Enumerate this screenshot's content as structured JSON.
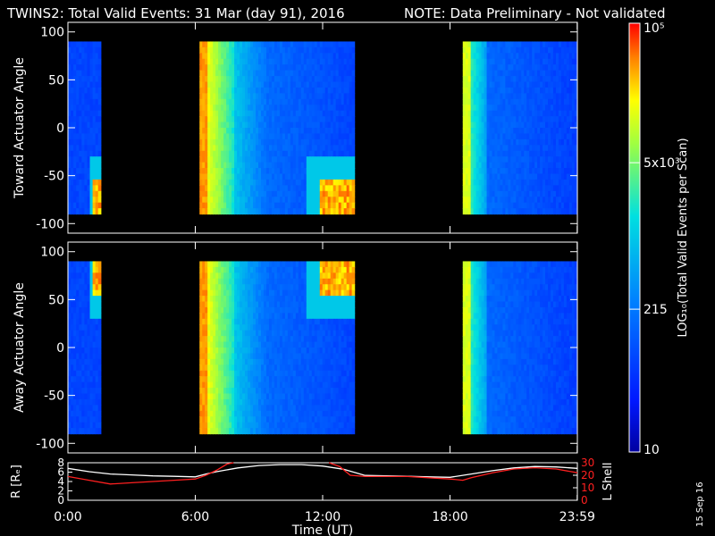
{
  "title": "TWINS2: Total Valid Events: 31 Mar (day  91), 2016",
  "note": "NOTE: Data Preliminary - Not validated",
  "stamp": "15 Sep 16",
  "colors": {
    "note": "#ff2020",
    "r_line": "#ffffff",
    "lshell_line": "#ff2020",
    "background": "#000000"
  },
  "chart_data": [
    {
      "type": "heatmap",
      "ylabel": "Toward Actuator Angle",
      "ylim": [
        -110,
        110
      ],
      "yticks": [
        "100",
        "50",
        "0",
        "-50",
        "-100"
      ],
      "ytick_values": [
        100,
        50,
        0,
        -50,
        -100
      ],
      "angle_range": [
        -90,
        90
      ],
      "xlim": [
        0,
        24
      ],
      "segments": [
        {
          "start_hr": 0.0,
          "end_hr": 1.55,
          "level": 0.22,
          "corner_hot": "bottom-right"
        },
        {
          "start_hr": 6.2,
          "end_hr": 13.5,
          "profile": "warm-start-cooling",
          "corner_hot": "bottom-right"
        },
        {
          "start_hr": 18.6,
          "end_hr": 23.99,
          "profile": "cyan-start-blue"
        }
      ]
    },
    {
      "type": "heatmap",
      "ylabel": "Away Actuator Angle",
      "ylim": [
        -110,
        110
      ],
      "yticks": [
        "100",
        "50",
        "0",
        "-50",
        "-100"
      ],
      "ytick_values": [
        100,
        50,
        0,
        -50,
        -100
      ],
      "angle_range": [
        -90,
        90
      ],
      "xlim": [
        0,
        24
      ],
      "segments": [
        {
          "start_hr": 0.0,
          "end_hr": 1.55,
          "level": 0.22,
          "corner_hot": "top-right"
        },
        {
          "start_hr": 6.2,
          "end_hr": 13.5,
          "profile": "warm-start-cooling",
          "corner_hot": "top-right"
        },
        {
          "start_hr": 18.6,
          "end_hr": 23.99,
          "profile": "cyan-start-blue"
        }
      ]
    },
    {
      "type": "line",
      "ylabel_left": "R [Rₑ]",
      "ylabel_right": "L Shell",
      "ylim_left": [
        0,
        8
      ],
      "ylim_right": [
        0,
        30
      ],
      "yticks_left": [
        "8",
        "6",
        "4",
        "2",
        "0"
      ],
      "yticks_left_values": [
        8,
        6,
        4,
        2,
        0
      ],
      "yticks_right": [
        "30",
        "20",
        "10",
        "0"
      ],
      "yticks_right_values": [
        30,
        20,
        10,
        0
      ],
      "xlabel": "Time (UT)",
      "xticks": [
        "0:00",
        "6:00",
        "12:00",
        "18:00",
        "23:59"
      ],
      "xtick_values": [
        0,
        6,
        12,
        18,
        23.99
      ],
      "series": [
        {
          "axis": "left",
          "x": [
            0,
            1,
            2,
            3,
            4,
            5,
            6,
            6.5,
            7,
            8,
            9,
            10,
            11,
            12,
            13,
            14,
            15,
            16,
            17,
            18,
            19,
            20,
            21,
            22,
            23,
            24
          ],
          "values": [
            6.8,
            6.1,
            5.6,
            5.4,
            5.2,
            5.1,
            5.0,
            5.6,
            6.1,
            6.9,
            7.4,
            7.6,
            7.6,
            7.3,
            6.6,
            5.3,
            5.2,
            5.1,
            5.0,
            4.9,
            5.6,
            6.3,
            6.9,
            7.2,
            7.1,
            6.8
          ]
        },
        {
          "axis": "right",
          "x": [
            0,
            1,
            2,
            3,
            4,
            5,
            6,
            6.5,
            7,
            7.5,
            7.8
          ],
          "values": [
            19,
            16,
            13,
            14,
            15,
            16,
            17,
            20,
            24,
            29,
            30
          ]
        },
        {
          "axis": "right",
          "x": [
            12.3,
            12.8,
            13.3,
            14,
            15,
            16,
            17,
            18,
            18.6,
            19,
            20,
            21,
            22,
            23,
            24
          ],
          "values": [
            30,
            27,
            20,
            19,
            19,
            19,
            18,
            17,
            16,
            18,
            22,
            25,
            26,
            25,
            22
          ]
        }
      ]
    }
  ],
  "colorbar": {
    "label": "LOG₁₀(Total Valid Events per Scan)",
    "ticks": [
      {
        "label": "10⁵",
        "value": 100000
      },
      {
        "label": "5x10³",
        "value": 5000
      },
      {
        "label": "215",
        "value": 215
      },
      {
        "label": "10",
        "value": 10
      }
    ],
    "range": [
      10,
      100000
    ]
  }
}
